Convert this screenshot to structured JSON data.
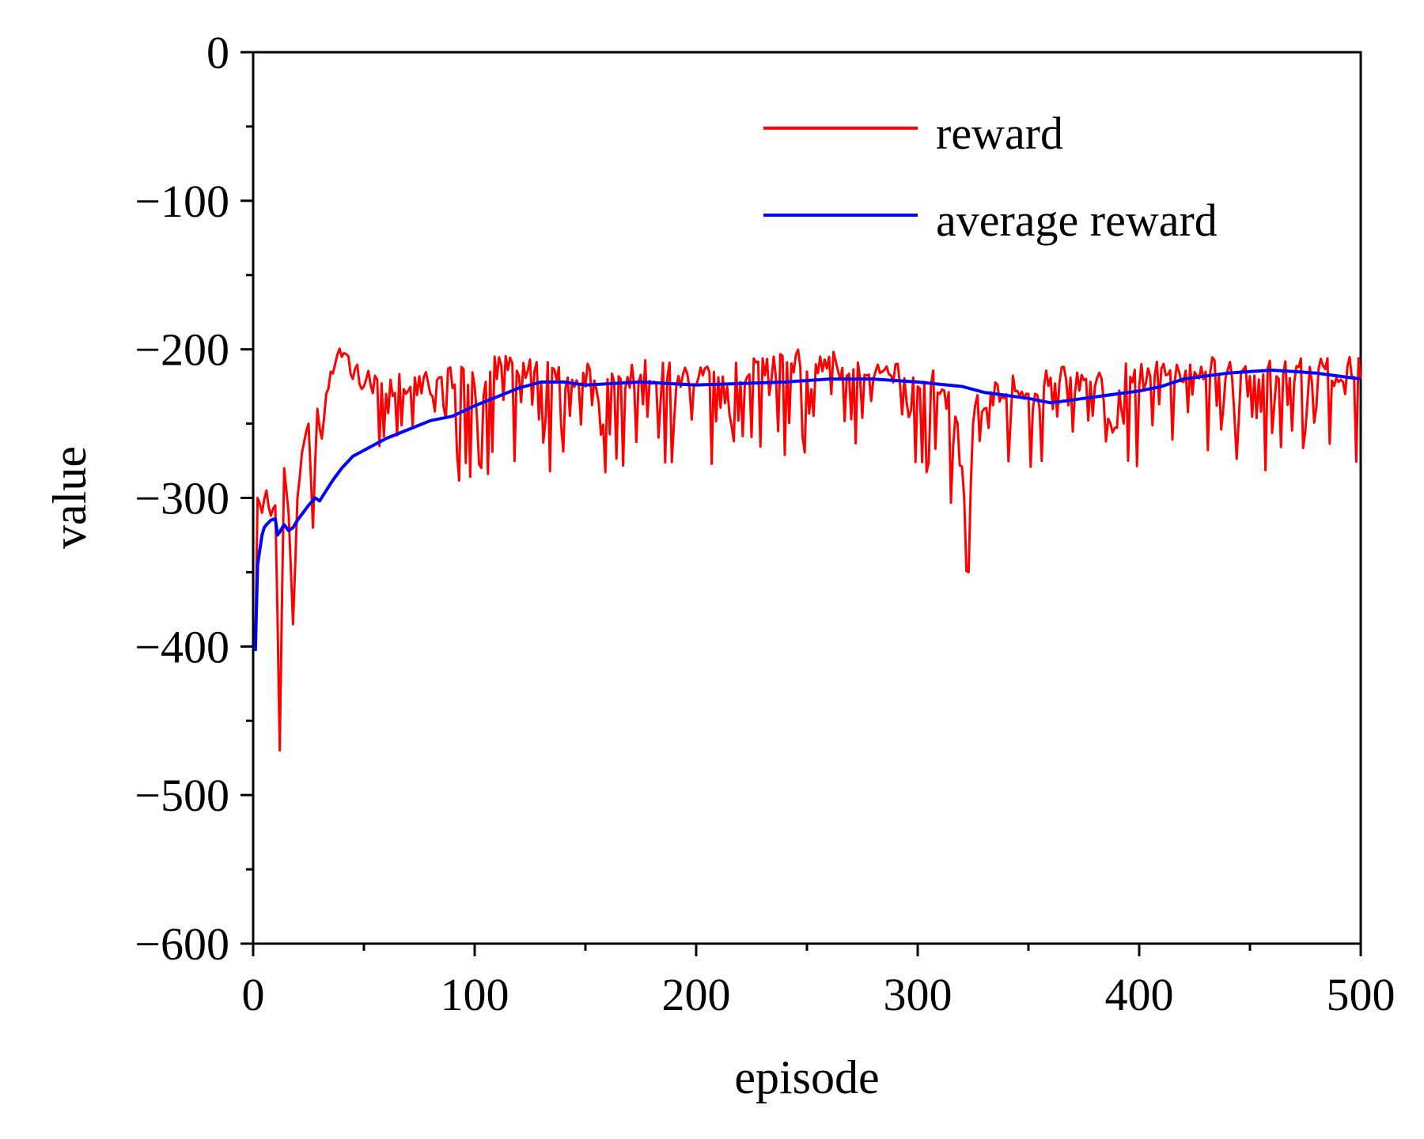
{
  "chart_data": {
    "type": "line",
    "title": "",
    "xlabel": "episode",
    "ylabel": "value",
    "xlim": [
      0,
      500
    ],
    "ylim": [
      -600,
      0
    ],
    "xticks": [
      0,
      100,
      200,
      300,
      400,
      500
    ],
    "xtick_labels": [
      "0",
      "100",
      "200",
      "300",
      "400",
      "500"
    ],
    "yticks": [
      0,
      -100,
      -200,
      -300,
      -400,
      -500,
      -600
    ],
    "ytick_labels": [
      "0",
      "−100",
      "−200",
      "−300",
      "−400",
      "−500",
      "−600"
    ],
    "grid": false,
    "legend_position": "top-right",
    "series": [
      {
        "name": "reward",
        "color": "#ff0000",
        "generated_from_anchors": true,
        "anchors": {
          "x": [
            1,
            2,
            4,
            6,
            8,
            10,
            11,
            12,
            14,
            16,
            18,
            20,
            22,
            25,
            27,
            29,
            31,
            33,
            35,
            37,
            40,
            45,
            50,
            60,
            70,
            80,
            90,
            100,
            110,
            120,
            130,
            150,
            180,
            200,
            220,
            250,
            280,
            300,
            310,
            318,
            321,
            323,
            325,
            330,
            350,
            380,
            400,
            420,
            450,
            470,
            490,
            500
          ],
          "y": [
            -400,
            -300,
            -310,
            -295,
            -312,
            -305,
            -380,
            -470,
            -280,
            -310,
            -385,
            -300,
            -270,
            -250,
            -320,
            -240,
            -260,
            -230,
            -215,
            -210,
            -205,
            -220,
            -225,
            -230,
            -228,
            -230,
            -226,
            -225,
            -220,
            -218,
            -222,
            -225,
            -223,
            -224,
            -222,
            -215,
            -220,
            -225,
            -230,
            -250,
            -300,
            -350,
            -250,
            -240,
            -230,
            -225,
            -225,
            -222,
            -218,
            -222,
            -222,
            -220
          ]
        },
        "noise_amplitude": 42
      },
      {
        "name": "average reward",
        "color": "#0000ff",
        "x": [
          1,
          2,
          3,
          4,
          5,
          6,
          8,
          10,
          11,
          12,
          14,
          16,
          18,
          20,
          25,
          28,
          30,
          33,
          36,
          40,
          45,
          50,
          60,
          70,
          80,
          90,
          100,
          110,
          120,
          130,
          140,
          150,
          175,
          200,
          220,
          240,
          260,
          280,
          300,
          320,
          330,
          350,
          360,
          380,
          400,
          410,
          420,
          430,
          440,
          450,
          460,
          470,
          480,
          490,
          500
        ],
        "y": [
          -403,
          -345,
          -335,
          -325,
          -320,
          -318,
          -315,
          -314,
          -325,
          -323,
          -318,
          -322,
          -320,
          -315,
          -305,
          -300,
          -302,
          -295,
          -288,
          -280,
          -272,
          -268,
          -260,
          -254,
          -248,
          -245,
          -238,
          -232,
          -226,
          -222,
          -222,
          -224,
          -222,
          -224,
          -223,
          -222,
          -220,
          -220,
          -222,
          -225,
          -229,
          -233,
          -236,
          -232,
          -228,
          -225,
          -220,
          -218,
          -216,
          -215,
          -214,
          -215,
          -216,
          -218,
          -220
        ]
      }
    ]
  }
}
